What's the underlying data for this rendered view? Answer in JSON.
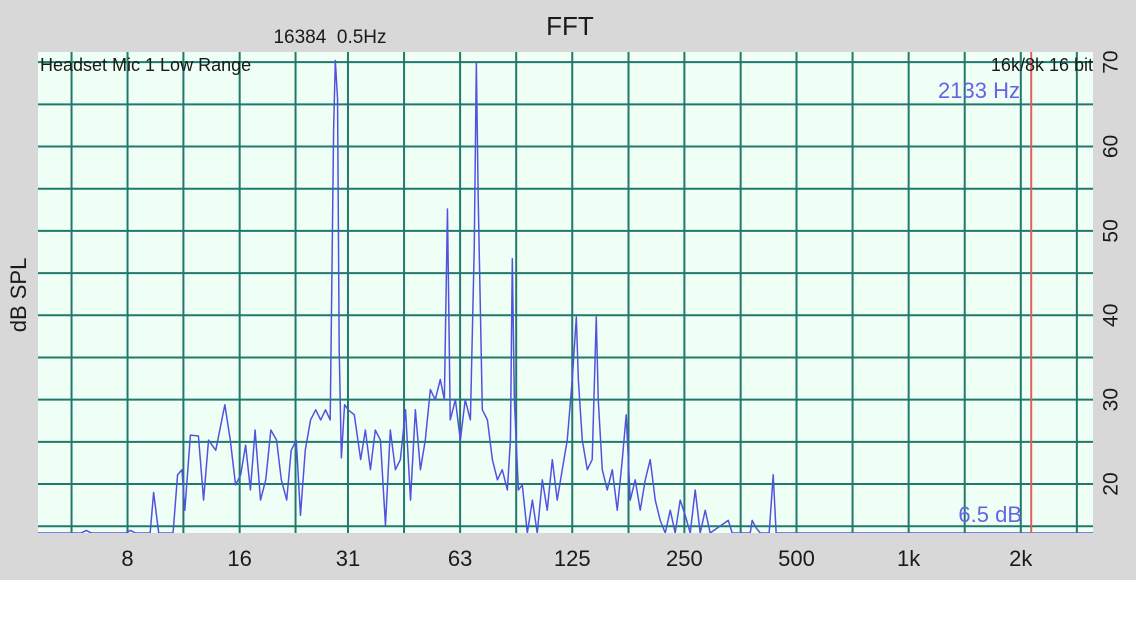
{
  "chart_data": {
    "type": "line",
    "title": "FFT",
    "info": "16384  0.5Hz",
    "source_label": "Headset Mic 1 Low Range",
    "format_label": "16k/8k 16 bit",
    "ylabel": "dB SPL",
    "cursor": 2133,
    "cursor_label": "2133 Hz",
    "cursor_color": "#e06060",
    "level_label": "6.5 dB",
    "log_x": true,
    "grid": true,
    "color": "#5252e0",
    "xlim": [
      4.6,
      3125
    ],
    "ylim": [
      14.2,
      71.2
    ],
    "xticks": [
      8,
      16,
      {
        "value": 31.25,
        "label": "31"
      },
      {
        "value": 62.5,
        "label": "63"
      },
      125,
      250,
      500,
      {
        "value": 1000,
        "label": "1k"
      },
      {
        "value": 2000,
        "label": "2k"
      }
    ],
    "yticks": [
      20,
      30,
      40,
      50,
      60,
      70
    ],
    "xgrid": [
      5.66,
      8,
      11.3,
      16,
      22.6,
      31.25,
      44.2,
      62.5,
      88.4,
      125,
      177,
      250,
      354,
      500,
      707,
      1000,
      1414,
      2000,
      2828
    ],
    "ygrid": [
      15,
      20,
      25,
      30,
      35,
      40,
      45,
      50,
      55,
      60,
      65,
      70
    ],
    "x": [
      4.6,
      6.0,
      6.2,
      6.4,
      7.9,
      8.15,
      8.4,
      9.2,
      9.4,
      9.7,
      10.6,
      10.9,
      11.2,
      11.4,
      11.8,
      12.4,
      12.8,
      13.2,
      13.8,
      14.6,
      15.1,
      15.6,
      16.1,
      16.6,
      17.1,
      17.6,
      18.2,
      18.8,
      19.4,
      20.1,
      20.7,
      21.4,
      22.0,
      22.7,
      23.3,
      24.0,
      24.8,
      25.6,
      26.4,
      27.2,
      28.0,
      28.6,
      28.9,
      29.3,
      29.6,
      30.0,
      30.6,
      31.3,
      32.5,
      33.8,
      34.8,
      35.9,
      37.0,
      38.2,
      39.4,
      40.6,
      41.9,
      43.2,
      44.6,
      46.0,
      47.4,
      48.9,
      50.4,
      52.0,
      53.6,
      55.3,
      56.7,
      57.8,
      58.8,
      60.7,
      62.6,
      64.5,
      66.6,
      68.2,
      69.1,
      69.9,
      71.7,
      74.0,
      76.3,
      78.7,
      81.1,
      83.7,
      85.3,
      86.3,
      87.4,
      89.6,
      91.8,
      94.7,
      97.7,
      100.7,
      103.9,
      107.1,
      110.5,
      113.9,
      117.5,
      121.2,
      125.0,
      128.2,
      129.8,
      133.0,
      137.2,
      141.4,
      145.0,
      146.8,
      150.5,
      155.2,
      160.1,
      165.1,
      170.3,
      174.5,
      178.9,
      184.5,
      190.3,
      196.3,
      202.4,
      208.8,
      215.3,
      222.1,
      229.1,
      236.2,
      243.6,
      251.3,
      259.2,
      267.3,
      275.7,
      284.4,
      293.2,
      327.9,
      335.9,
      375.6,
      380.1,
      389.6,
      399.4,
      422.2,
      432.9,
      440.8,
      3125
    ],
    "values": [
      14.2,
      14.2,
      14.5,
      14.2,
      14.2,
      14.5,
      14.2,
      14.2,
      19.0,
      14.2,
      14.2,
      21.1,
      21.7,
      16.9,
      25.8,
      25.7,
      18.1,
      25.2,
      24.0,
      29.4,
      25.2,
      19.9,
      21.1,
      24.6,
      19.3,
      26.4,
      18.1,
      20.5,
      26.4,
      25.2,
      20.5,
      18.1,
      24.0,
      25.2,
      16.3,
      24.0,
      27.6,
      28.8,
      27.6,
      28.8,
      27.6,
      62.1,
      70.2,
      65.7,
      36.0,
      23.1,
      29.4,
      28.8,
      28.2,
      22.9,
      26.4,
      21.7,
      26.4,
      25.2,
      15.1,
      26.4,
      21.7,
      22.9,
      28.8,
      18.1,
      28.8,
      21.7,
      25.2,
      31.2,
      30.0,
      32.4,
      30.0,
      52.6,
      27.6,
      30.0,
      25.2,
      30.0,
      27.6,
      47.9,
      69.9,
      53.8,
      28.8,
      27.6,
      22.9,
      20.5,
      21.7,
      19.3,
      25.2,
      46.7,
      30.0,
      19.3,
      19.9,
      14.2,
      18.1,
      14.2,
      20.5,
      16.9,
      22.9,
      18.1,
      21.7,
      25.2,
      32.4,
      39.8,
      32.4,
      25.2,
      21.7,
      22.9,
      39.8,
      30.0,
      21.7,
      19.3,
      21.7,
      16.9,
      22.9,
      28.2,
      18.1,
      20.5,
      16.9,
      20.5,
      22.9,
      18.1,
      15.7,
      14.2,
      16.9,
      14.2,
      18.1,
      16.3,
      14.2,
      19.3,
      14.2,
      16.9,
      14.2,
      15.7,
      14.2,
      14.2,
      15.7,
      14.8,
      14.2,
      14.2,
      21.1,
      14.2,
      14.2
    ]
  }
}
